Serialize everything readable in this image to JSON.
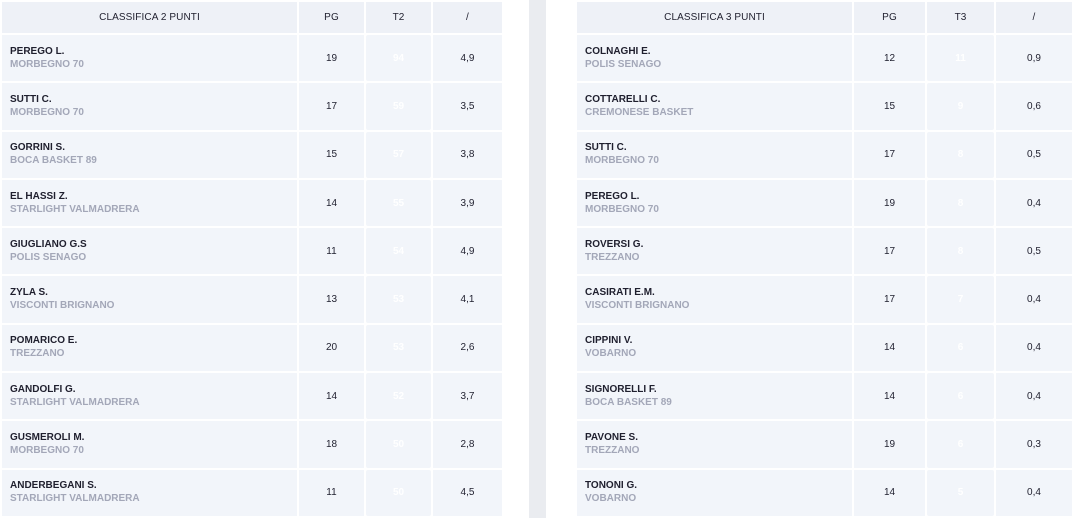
{
  "left": {
    "headers": [
      "CLASSIFICA 2 PUNTI",
      "PG",
      "T2",
      "/"
    ],
    "rows": [
      {
        "name": "PEREGO L.",
        "team": "MORBEGNO 70",
        "pg": "19",
        "stat": "94",
        "avg": "4,9"
      },
      {
        "name": "SUTTI C.",
        "team": "MORBEGNO 70",
        "pg": "17",
        "stat": "59",
        "avg": "3,5"
      },
      {
        "name": "GORRINI S.",
        "team": "BOCA BASKET 89",
        "pg": "15",
        "stat": "57",
        "avg": "3,8"
      },
      {
        "name": "EL HASSI Z.",
        "team": "STARLIGHT VALMADRERA",
        "pg": "14",
        "stat": "55",
        "avg": "3,9"
      },
      {
        "name": "GIUGLIANO G.S",
        "team": "POLIS SENAGO",
        "pg": "11",
        "stat": "54",
        "avg": "4,9"
      },
      {
        "name": "ZYLA S.",
        "team": "VISCONTI BRIGNANO",
        "pg": "13",
        "stat": "53",
        "avg": "4,1"
      },
      {
        "name": "POMARICO E.",
        "team": "TREZZANO",
        "pg": "20",
        "stat": "53",
        "avg": "2,6"
      },
      {
        "name": "GANDOLFI G.",
        "team": "STARLIGHT VALMADRERA",
        "pg": "14",
        "stat": "52",
        "avg": "3,7"
      },
      {
        "name": "GUSMEROLI M.",
        "team": "MORBEGNO 70",
        "pg": "18",
        "stat": "50",
        "avg": "2,8"
      },
      {
        "name": "ANDERBEGANI S.",
        "team": "STARLIGHT VALMADRERA",
        "pg": "11",
        "stat": "50",
        "avg": "4,5"
      }
    ]
  },
  "right": {
    "headers": [
      "CLASSIFICA 3 PUNTI",
      "PG",
      "T3",
      "/"
    ],
    "rows": [
      {
        "name": "COLNAGHI E.",
        "team": "POLIS SENAGO",
        "pg": "12",
        "stat": "11",
        "avg": "0,9"
      },
      {
        "name": "COTTARELLI C.",
        "team": "CREMONESE BASKET",
        "pg": "15",
        "stat": "9",
        "avg": "0,6"
      },
      {
        "name": "SUTTI C.",
        "team": "MORBEGNO 70",
        "pg": "17",
        "stat": "8",
        "avg": "0,5"
      },
      {
        "name": "PEREGO L.",
        "team": "MORBEGNO 70",
        "pg": "19",
        "stat": "8",
        "avg": "0,4"
      },
      {
        "name": "ROVERSI G.",
        "team": "TREZZANO",
        "pg": "17",
        "stat": "8",
        "avg": "0,5"
      },
      {
        "name": "CASIRATI E.M.",
        "team": "VISCONTI BRIGNANO",
        "pg": "17",
        "stat": "7",
        "avg": "0,4"
      },
      {
        "name": "CIPPINI V.",
        "team": "VOBARNO",
        "pg": "14",
        "stat": "6",
        "avg": "0,4"
      },
      {
        "name": "SIGNORELLI F.",
        "team": "BOCA BASKET 89",
        "pg": "14",
        "stat": "6",
        "avg": "0,4"
      },
      {
        "name": "PAVONE S.",
        "team": "TREZZANO",
        "pg": "19",
        "stat": "6",
        "avg": "0,3"
      },
      {
        "name": "TONONI G.",
        "team": "VOBARNO",
        "pg": "14",
        "stat": "5",
        "avg": "0,4"
      }
    ]
  },
  "colors": {
    "highlight": "#8a0f46",
    "header_bg": "#eef1f7",
    "row_bg": "#f2f5fa",
    "team_text": "#a3a7b8"
  }
}
